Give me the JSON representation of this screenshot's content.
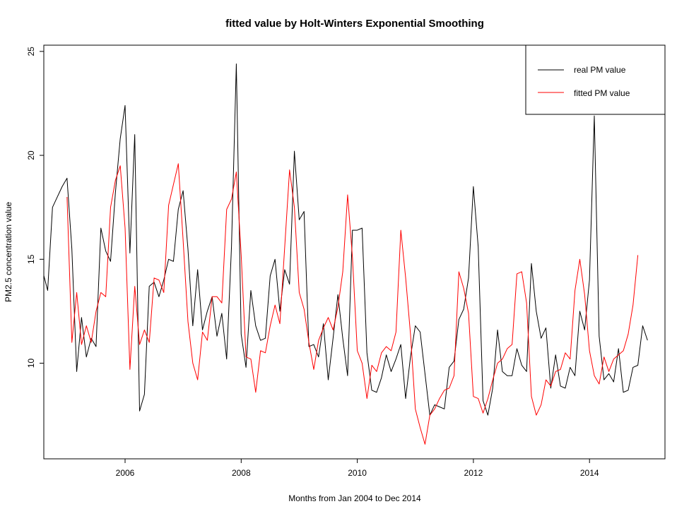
{
  "chart_data": {
    "type": "line",
    "title": "fitted value by Holt-Winters Exponential Smoothing",
    "xlabel": "Months from Jan 2004 to Dec 2014",
    "ylabel": "PM2.5 concentration value",
    "xlim": [
      2004.6,
      2015.3
    ],
    "ylim": [
      5.4,
      25.3
    ],
    "x_ticks": [
      2006,
      2008,
      2010,
      2012,
      2014
    ],
    "y_ticks": [
      10,
      15,
      20,
      25
    ],
    "grid": false,
    "legend_position": "top-right",
    "series": [
      {
        "name": "real PM value",
        "color": "#000000",
        "x_start": 2004.583,
        "x_step": 0.08333,
        "values": [
          14.4,
          13.5,
          17.5,
          18.0,
          18.5,
          18.9,
          15.5,
          9.6,
          12.2,
          10.3,
          11.2,
          10.8,
          16.5,
          15.4,
          14.9,
          18.2,
          20.8,
          22.4,
          15.3,
          21.0,
          7.7,
          8.5,
          13.7,
          13.9,
          13.2,
          14.0,
          15.0,
          14.9,
          17.4,
          18.3,
          15.5,
          11.8,
          14.5,
          11.6,
          12.5,
          13.2,
          11.3,
          12.4,
          10.2,
          15.6,
          24.4,
          11.4,
          9.8,
          13.5,
          11.8,
          11.1,
          11.2,
          14.2,
          15.0,
          12.5,
          14.5,
          13.8,
          20.2,
          16.9,
          17.3,
          10.8,
          10.9,
          10.3,
          11.9,
          9.2,
          11.2,
          13.3,
          11.2,
          9.4,
          16.4,
          16.4,
          16.5,
          10.5,
          8.7,
          8.6,
          9.3,
          10.4,
          9.6,
          10.2,
          10.9,
          8.3,
          10.3,
          11.8,
          11.5,
          9.5,
          7.5,
          8.0,
          7.9,
          7.8,
          9.8,
          10.1,
          12.1,
          12.6,
          14.1,
          18.5,
          15.6,
          8.2,
          7.5,
          8.8,
          11.6,
          9.6,
          9.4,
          9.4,
          10.7,
          9.9,
          9.6,
          14.8,
          12.5,
          11.2,
          11.7,
          8.8,
          10.4,
          8.9,
          8.8,
          9.8,
          9.4,
          12.5,
          11.6,
          14.0,
          21.9,
          11.3,
          9.2,
          9.5,
          9.1,
          10.7,
          8.6,
          8.7,
          9.8,
          9.9,
          11.8,
          11.1
        ]
      },
      {
        "name": "fitted PM value",
        "color": "#ff0000",
        "x_start": 2005.0,
        "x_step": 0.08333,
        "values": [
          18.0,
          11.0,
          13.4,
          10.9,
          11.8,
          11.0,
          12.5,
          13.4,
          13.2,
          17.5,
          18.8,
          19.5,
          16.5,
          9.7,
          13.7,
          10.9,
          11.6,
          11.0,
          14.1,
          14.0,
          13.4,
          17.6,
          18.6,
          19.6,
          15.9,
          12.0,
          10.0,
          9.2,
          11.5,
          11.1,
          13.2,
          13.2,
          12.9,
          17.4,
          17.9,
          19.2,
          15.2,
          10.3,
          10.2,
          8.6,
          10.6,
          10.5,
          11.8,
          12.8,
          11.9,
          15.6,
          19.3,
          17.5,
          13.4,
          12.6,
          11.0,
          9.7,
          11.1,
          11.7,
          12.2,
          11.6,
          12.7,
          14.4,
          18.1,
          15.1,
          10.6,
          10.0,
          8.3,
          9.9,
          9.6,
          10.5,
          10.8,
          10.6,
          11.5,
          16.4,
          14.1,
          11.4,
          7.8,
          6.9,
          6.1,
          7.5,
          7.8,
          8.3,
          8.7,
          8.8,
          9.4,
          14.4,
          13.6,
          12.4,
          8.4,
          8.3,
          7.6,
          8.3,
          9.2,
          10.0,
          10.2,
          10.7,
          10.9,
          14.3,
          14.4,
          12.9,
          8.4,
          7.5,
          8.0,
          9.2,
          8.9,
          9.6,
          9.7,
          10.5,
          10.2,
          13.5,
          15.0,
          13.3,
          10.6,
          9.4,
          9.0,
          10.3,
          9.6,
          10.2,
          10.4,
          10.6,
          11.4,
          12.8,
          15.2
        ]
      }
    ]
  }
}
